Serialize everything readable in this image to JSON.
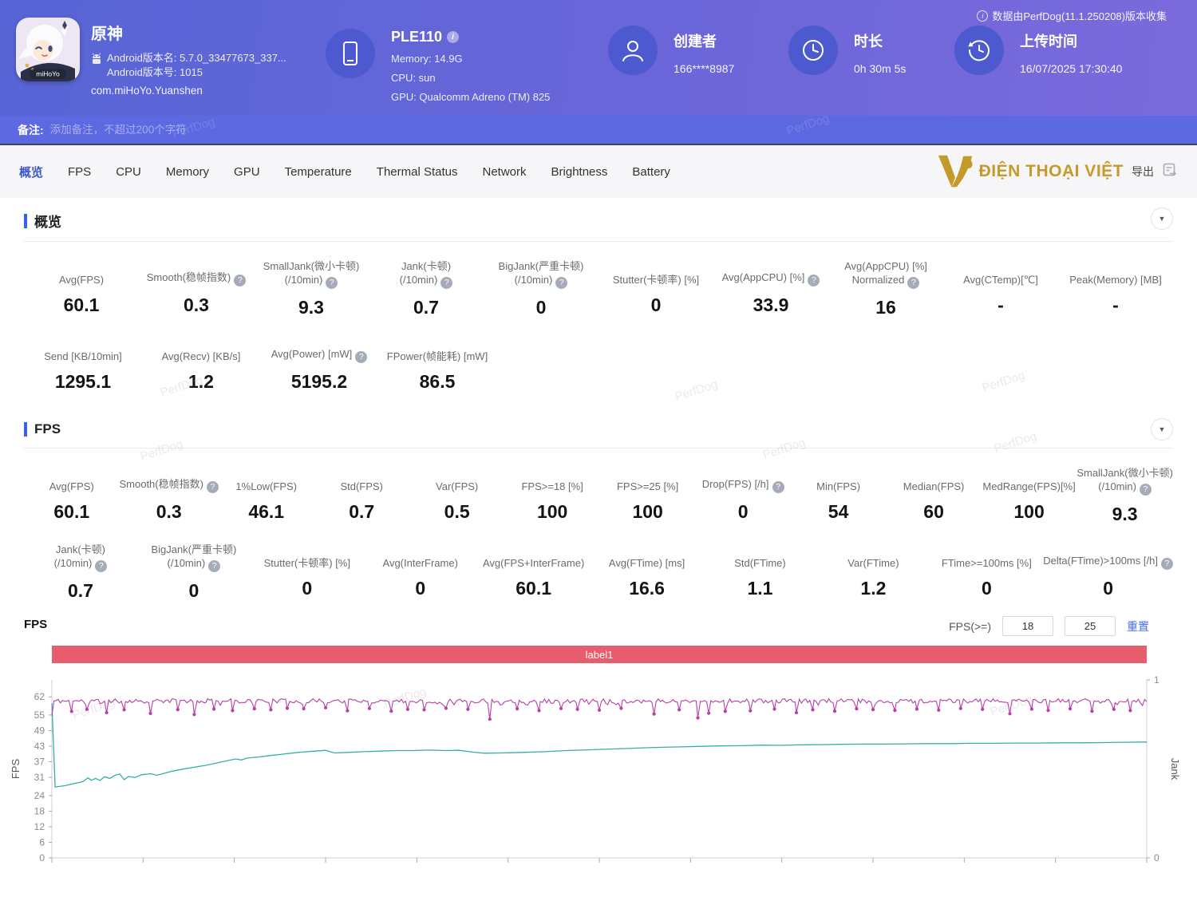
{
  "watermark": "PerfDog",
  "header": {
    "app": {
      "name": "原神",
      "version_name": "Android版本名: 5.7.0_33477673_337...",
      "version_code": "Android版本号: 1015",
      "package": "com.miHoYo.Yuanshen",
      "icon_brand": "miHoYo"
    },
    "device": {
      "model": "PLE110",
      "memory": "Memory: 14.9G",
      "cpu": "CPU: sun",
      "gpu": "GPU: Qualcomm Adreno (TM) 825"
    },
    "creator": {
      "label": "创建者",
      "value": "166****8987"
    },
    "duration": {
      "label": "时长",
      "value": "0h 30m 5s"
    },
    "upload": {
      "label": "上传时间",
      "value": "16/07/2025 17:30:40"
    },
    "collect_note": "数据由PerfDog(11.1.250208)版本收集"
  },
  "note_bar": {
    "label": "备注:",
    "placeholder": "添加备注，不超过200个字符"
  },
  "tabs": [
    "概览",
    "FPS",
    "CPU",
    "Memory",
    "GPU",
    "Temperature",
    "Thermal Status",
    "Network",
    "Brightness",
    "Battery"
  ],
  "active_tab": "概览",
  "brand": {
    "name": "ĐIỆN THOẠI VIỆT",
    "color": "#c59a28"
  },
  "export_label": "导出",
  "overview": {
    "title": "概览",
    "row1": [
      {
        "id": "avg-fps",
        "label": "Avg(FPS)",
        "value": "60.1"
      },
      {
        "id": "smooth",
        "label": "Smooth(稳帧指数)",
        "help": true,
        "value": "0.3"
      },
      {
        "id": "smalljank",
        "label": "SmallJank(微小卡顿)",
        "sub": "(/10min)",
        "help": true,
        "value": "9.3"
      },
      {
        "id": "jank",
        "label": "Jank(卡顿)",
        "sub": "(/10min)",
        "help": true,
        "value": "0.7"
      },
      {
        "id": "bigjank",
        "label": "BigJank(严重卡顿)",
        "sub": "(/10min)",
        "help": true,
        "value": "0"
      },
      {
        "id": "stutter",
        "label": "Stutter(卡顿率) [%]",
        "value": "0"
      },
      {
        "id": "avg-appcpu",
        "label": "Avg(AppCPU) [%]",
        "help": true,
        "value": "33.9"
      },
      {
        "id": "avg-appcpu-normalized",
        "label": "Avg(AppCPU) [%]",
        "sub": "Normalized",
        "help": true,
        "value": "16"
      },
      {
        "id": "avg-ctemp",
        "label": "Avg(CTemp)[℃]",
        "value": "-"
      },
      {
        "id": "peak-memory",
        "label": "Peak(Memory) [MB]",
        "value": "-"
      }
    ],
    "row2": [
      {
        "id": "send",
        "label": "Send [KB/10min]",
        "value": "1295.1"
      },
      {
        "id": "avg-recv",
        "label": "Avg(Recv) [KB/s]",
        "value": "1.2"
      },
      {
        "id": "avg-power",
        "label": "Avg(Power) [mW]",
        "help": true,
        "value": "5195.2"
      },
      {
        "id": "fpower",
        "label": "FPower(帧能耗) [mW]",
        "value": "86.5"
      }
    ]
  },
  "fps_section": {
    "title": "FPS",
    "row1": [
      {
        "id": "avg-fps",
        "label": "Avg(FPS)",
        "value": "60.1"
      },
      {
        "id": "smooth",
        "label": "Smooth(稳帧指数)",
        "help": true,
        "value": "0.3"
      },
      {
        "id": "low1",
        "label": "1%Low(FPS)",
        "value": "46.1"
      },
      {
        "id": "std-fps",
        "label": "Std(FPS)",
        "value": "0.7"
      },
      {
        "id": "var-fps",
        "label": "Var(FPS)",
        "value": "0.5"
      },
      {
        "id": "fps-ge-18",
        "label": "FPS>=18 [%]",
        "value": "100"
      },
      {
        "id": "fps-ge-25",
        "label": "FPS>=25 [%]",
        "value": "100"
      },
      {
        "id": "drop-fps",
        "label": "Drop(FPS) [/h]",
        "help": true,
        "value": "0"
      },
      {
        "id": "min-fps",
        "label": "Min(FPS)",
        "value": "54"
      },
      {
        "id": "median-fps",
        "label": "Median(FPS)",
        "value": "60"
      },
      {
        "id": "medrange-fps",
        "label": "MedRange(FPS)[%]",
        "value": "100"
      },
      {
        "id": "smalljank",
        "label": "SmallJank(微小卡顿)",
        "sub": "(/10min)",
        "help": true,
        "value": "9.3"
      }
    ],
    "row2": [
      {
        "id": "jank",
        "label": "Jank(卡顿)",
        "sub": "(/10min)",
        "help": true,
        "value": "0.7"
      },
      {
        "id": "bigjank",
        "label": "BigJank(严重卡顿)",
        "sub": "(/10min)",
        "help": true,
        "value": "0"
      },
      {
        "id": "stutter",
        "label": "Stutter(卡顿率) [%]",
        "value": "0"
      },
      {
        "id": "avg-interframe",
        "label": "Avg(InterFrame)",
        "value": "0"
      },
      {
        "id": "avg-fps-interframe",
        "label": "Avg(FPS+InterFrame)",
        "value": "60.1"
      },
      {
        "id": "avg-ftime",
        "label": "Avg(FTime) [ms]",
        "value": "16.6"
      },
      {
        "id": "std-ftime",
        "label": "Std(FTime)",
        "value": "1.1"
      },
      {
        "id": "var-ftime",
        "label": "Var(FTime)",
        "value": "1.2"
      },
      {
        "id": "ftime-ge-100ms",
        "label": "FTime>=100ms [%]",
        "value": "0"
      },
      {
        "id": "delta-ftime",
        "label": "Delta(FTime)>100ms [/h]",
        "help": true,
        "value": "0"
      }
    ]
  },
  "chart_data": {
    "type": "line",
    "panel_title": "FPS",
    "annotation_label": "label1",
    "annotation_color": "#e75d6d",
    "controls": {
      "filter_label": "FPS(>=)",
      "threshold_values": [
        "18",
        "25"
      ],
      "reset_label": "重置"
    },
    "x_axis": {
      "tick_count": 13,
      "labels_visible": false
    },
    "y_left": {
      "label": "FPS",
      "ticks": [
        62,
        55,
        49,
        43,
        37,
        31,
        24,
        18,
        12,
        6,
        0
      ],
      "max": 68.5
    },
    "y_right": {
      "label": "Jank",
      "ticks": [
        1,
        0
      ]
    },
    "grid": false,
    "series": [
      {
        "name": "FPS",
        "color": "#b83fa6",
        "style": "noisy-band",
        "base": 60.4,
        "noise": 0.85,
        "start": 54.8,
        "samples": 520,
        "seed": 11,
        "dips": [
          [
            0.018,
            56.4
          ],
          [
            0.032,
            57.2
          ],
          [
            0.05,
            55.9
          ],
          [
            0.066,
            57.0
          ],
          [
            0.09,
            55.6
          ],
          [
            0.115,
            57.1
          ],
          [
            0.13,
            55.2
          ],
          [
            0.148,
            57.3
          ],
          [
            0.165,
            56.7
          ],
          [
            0.185,
            57.4
          ],
          [
            0.2,
            57.0
          ],
          [
            0.215,
            57.6
          ],
          [
            0.23,
            57.4
          ],
          [
            0.25,
            57.8
          ],
          [
            0.27,
            56.6
          ],
          [
            0.29,
            57.5
          ],
          [
            0.31,
            56.5
          ],
          [
            0.325,
            57.2
          ],
          [
            0.34,
            57.0
          ],
          [
            0.36,
            57.6
          ],
          [
            0.38,
            57.2
          ],
          [
            0.4,
            53.4
          ],
          [
            0.425,
            57.4
          ],
          [
            0.445,
            56.7
          ],
          [
            0.465,
            57.5
          ],
          [
            0.48,
            57.2
          ],
          [
            0.5,
            56.9
          ],
          [
            0.52,
            57.6
          ],
          [
            0.55,
            55.4
          ],
          [
            0.573,
            57.0
          ],
          [
            0.59,
            53.9
          ],
          [
            0.6,
            55.7
          ],
          [
            0.615,
            56.4
          ],
          [
            0.638,
            56.6
          ],
          [
            0.66,
            57.3
          ],
          [
            0.68,
            55.9
          ],
          [
            0.695,
            57.0
          ],
          [
            0.715,
            56.5
          ],
          [
            0.735,
            57.4
          ],
          [
            0.75,
            57.1
          ],
          [
            0.77,
            56.8
          ],
          [
            0.79,
            57.3
          ],
          [
            0.81,
            56.9
          ],
          [
            0.83,
            57.5
          ],
          [
            0.85,
            57.2
          ],
          [
            0.875,
            55.5
          ],
          [
            0.895,
            57.3
          ],
          [
            0.91,
            56.8
          ],
          [
            0.93,
            57.4
          ],
          [
            0.95,
            56.5
          ],
          [
            0.97,
            57.2
          ],
          [
            0.985,
            56.7
          ]
        ]
      },
      {
        "name": "FPS-trend",
        "color": "#35b0a2",
        "style": "smooth",
        "points": [
          [
            0,
            59.5
          ],
          [
            0.003,
            27.3
          ],
          [
            0.012,
            27.8
          ],
          [
            0.02,
            28.6
          ],
          [
            0.028,
            29.3
          ],
          [
            0.033,
            30.8
          ],
          [
            0.036,
            29.9
          ],
          [
            0.04,
            30.6
          ],
          [
            0.044,
            29.8
          ],
          [
            0.048,
            31.2
          ],
          [
            0.053,
            30.6
          ],
          [
            0.058,
            31.9
          ],
          [
            0.062,
            32.3
          ],
          [
            0.066,
            30.1
          ],
          [
            0.07,
            31.3
          ],
          [
            0.076,
            31.0
          ],
          [
            0.082,
            32.0
          ],
          [
            0.09,
            32.4
          ],
          [
            0.096,
            31.8
          ],
          [
            0.103,
            32.6
          ],
          [
            0.11,
            33.4
          ],
          [
            0.12,
            34.2
          ],
          [
            0.13,
            34.9
          ],
          [
            0.14,
            35.6
          ],
          [
            0.15,
            36.5
          ],
          [
            0.16,
            37.4
          ],
          [
            0.168,
            38.1
          ],
          [
            0.173,
            37.7
          ],
          [
            0.178,
            38.4
          ],
          [
            0.19,
            38.9
          ],
          [
            0.2,
            39.4
          ],
          [
            0.21,
            39.9
          ],
          [
            0.225,
            40.6
          ],
          [
            0.24,
            41.1
          ],
          [
            0.25,
            41.4
          ],
          [
            0.258,
            40.4
          ],
          [
            0.27,
            40.6
          ],
          [
            0.285,
            40.9
          ],
          [
            0.3,
            41.1
          ],
          [
            0.315,
            41.3
          ],
          [
            0.33,
            41.3
          ],
          [
            0.345,
            41.5
          ],
          [
            0.36,
            41.3
          ],
          [
            0.372,
            41.4
          ],
          [
            0.385,
            40.7
          ],
          [
            0.395,
            40.3
          ],
          [
            0.41,
            40.4
          ],
          [
            0.43,
            40.6
          ],
          [
            0.45,
            40.9
          ],
          [
            0.47,
            41.3
          ],
          [
            0.49,
            41.6
          ],
          [
            0.51,
            41.9
          ],
          [
            0.53,
            42.2
          ],
          [
            0.55,
            42.5
          ],
          [
            0.57,
            42.7
          ],
          [
            0.59,
            42.9
          ],
          [
            0.61,
            43.1
          ],
          [
            0.63,
            43.2
          ],
          [
            0.65,
            43.4
          ],
          [
            0.665,
            43.3
          ],
          [
            0.68,
            43.5
          ],
          [
            0.7,
            43.6
          ],
          [
            0.72,
            43.7
          ],
          [
            0.74,
            43.8
          ],
          [
            0.76,
            43.8
          ],
          [
            0.78,
            43.9
          ],
          [
            0.8,
            44.0
          ],
          [
            0.82,
            44.0
          ],
          [
            0.84,
            44.1
          ],
          [
            0.86,
            44.1
          ],
          [
            0.88,
            44.2
          ],
          [
            0.9,
            44.2
          ],
          [
            0.92,
            44.3
          ],
          [
            0.94,
            44.3
          ],
          [
            0.96,
            44.4
          ],
          [
            0.98,
            44.5
          ],
          [
            1.0,
            44.6
          ]
        ]
      }
    ]
  }
}
